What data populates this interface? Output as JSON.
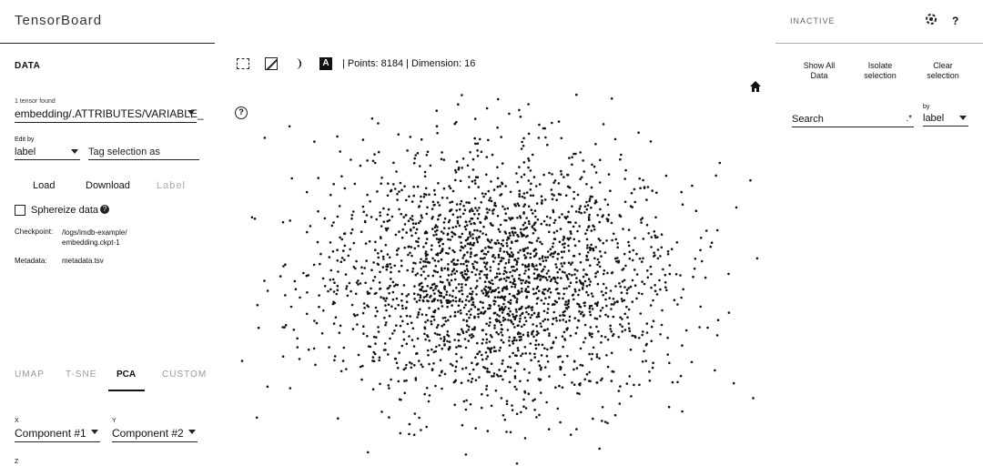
{
  "header": {
    "app_title": "TensorBoard",
    "run_select": "INACTIVE"
  },
  "left_panel": {
    "title": "DATA",
    "tensor_found": "1 tensor found",
    "tensor_name": "embedding/.ATTRIBUTES/VARIABLE_",
    "edit_by_label": "Edit by",
    "edit_by_value": "label",
    "tag_placeholder": "Tag selection as",
    "buttons": {
      "load": "Load",
      "download": "Download",
      "label": "Label"
    },
    "sphereize_label": "Sphereize data",
    "sphereize_checked": false,
    "checkpoint_label": "Checkpoint:",
    "checkpoint_value": "/logs/imdb-example/ embedding.ckpt-1",
    "metadata_label": "Metadata:",
    "metadata_value": "metadata.tsv",
    "tabs": [
      "UMAP",
      "T-SNE",
      "PCA",
      "CUSTOM"
    ],
    "active_tab": "PCA",
    "x_label": "X",
    "x_value": "Component #1",
    "y_label": "Y",
    "y_value": "Component #2",
    "z_label": "Z"
  },
  "toolbar": {
    "icons": [
      "selection-icon",
      "night-mode-icon",
      "moon-icon",
      "label-icon"
    ],
    "label_icon_text": "A",
    "stats": "| Points: 8184 | Dimension: 16"
  },
  "right_panel": {
    "show_all": "Show All Data",
    "isolate": "Isolate selection",
    "clear": "Clear selection",
    "search_placeholder": "Search",
    "search_regex": ".*",
    "by_label": "by",
    "by_value": "label"
  },
  "scatter": {
    "point_color": "#111111",
    "point_count_rendered": 2400
  }
}
